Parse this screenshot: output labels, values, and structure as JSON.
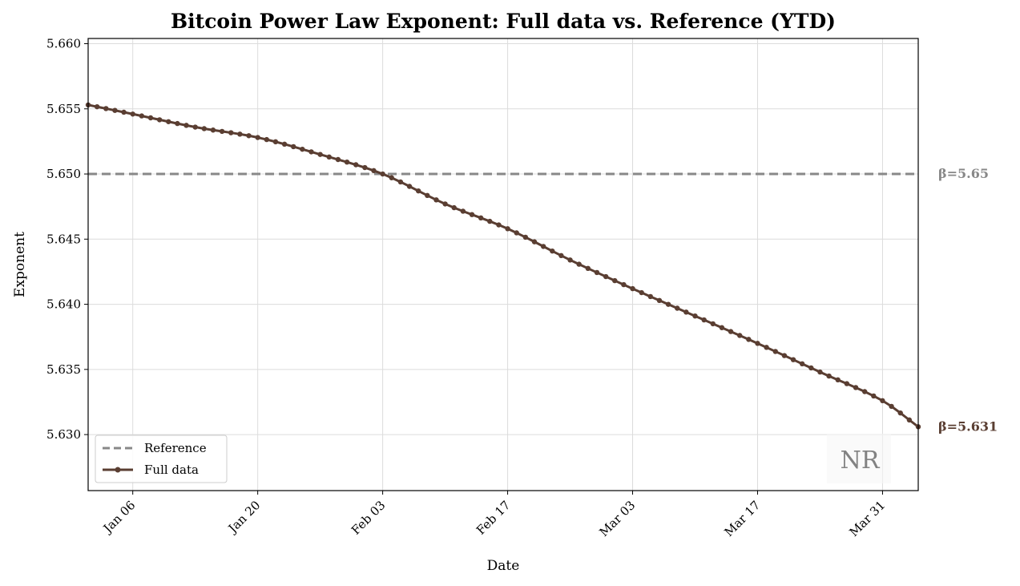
{
  "chart_data": {
    "type": "line",
    "title": "Bitcoin Power Law Exponent: Full data vs. Reference (YTD)",
    "xlabel": "Date",
    "ylabel": "Exponent",
    "x_range": [
      "2026-01-01",
      "2026-04-04"
    ],
    "ylim": [
      5.6257,
      5.6604
    ],
    "y_ticks": [
      5.63,
      5.635,
      5.64,
      5.645,
      5.65,
      5.655,
      5.66
    ],
    "y_tick_labels": [
      "5.630",
      "5.635",
      "5.640",
      "5.645",
      "5.650",
      "5.655",
      "5.660"
    ],
    "x_ticks": [
      "2026-01-06",
      "2026-01-20",
      "2026-02-03",
      "2026-02-17",
      "2026-03-03",
      "2026-03-17",
      "2026-03-31"
    ],
    "x_tick_labels": [
      "Jan 06",
      "Jan 20",
      "Feb 03",
      "Feb 17",
      "Mar 03",
      "Mar 17",
      "Mar 31"
    ],
    "grid": true,
    "legend_position": "lower-left",
    "series": [
      {
        "name": "Reference",
        "style": "dashed",
        "color": "#888888",
        "x": [
          "2026-01-01",
          "2026-04-04"
        ],
        "y": [
          5.65,
          5.65
        ]
      },
      {
        "name": "Full data",
        "style": "solid-markers",
        "color": "#5a3e32",
        "anchors": [
          {
            "x": "2026-01-01",
            "y": 5.6553
          },
          {
            "x": "2026-01-06",
            "y": 5.6546
          },
          {
            "x": "2026-01-13",
            "y": 5.6536
          },
          {
            "x": "2026-01-20",
            "y": 5.6528
          },
          {
            "x": "2026-01-27",
            "y": 5.6515
          },
          {
            "x": "2026-02-03",
            "y": 5.65
          },
          {
            "x": "2026-02-10",
            "y": 5.6477
          },
          {
            "x": "2026-02-17",
            "y": 5.6458
          },
          {
            "x": "2026-02-24",
            "y": 5.6434
          },
          {
            "x": "2026-03-03",
            "y": 5.6412
          },
          {
            "x": "2026-03-10",
            "y": 5.6391
          },
          {
            "x": "2026-03-17",
            "y": 5.637
          },
          {
            "x": "2026-03-24",
            "y": 5.6348
          },
          {
            "x": "2026-03-31",
            "y": 5.6326
          },
          {
            "x": "2026-04-04",
            "y": 5.6306
          }
        ]
      }
    ],
    "annotations": [
      {
        "text": "β=5.65",
        "color": "#888888",
        "y": 5.65
      },
      {
        "text": "β=5.631",
        "color": "#5a3e32",
        "y": 5.6306
      }
    ],
    "watermark": "NR"
  }
}
